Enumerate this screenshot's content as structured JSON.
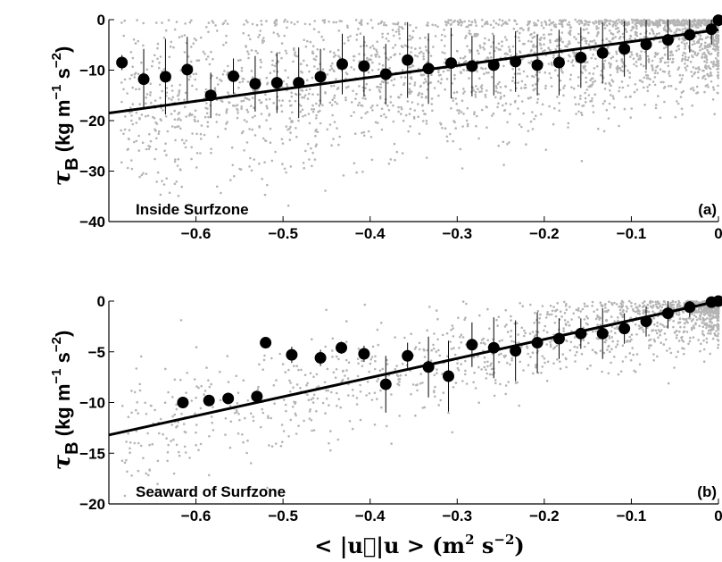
{
  "chart_data": [
    {
      "type": "scatter",
      "panel_tag": "(a)",
      "annotation": "Inside Surfzone",
      "ylabel": "τ_B (kg m^-1 s^-2)",
      "xlabel": "< |u⃗|u > (m^2 s^-2)",
      "xlim": [
        -0.7,
        0.0
      ],
      "ylim": [
        -40,
        0
      ],
      "xticks": [
        "-0.6",
        "-0.5",
        "-0.4",
        "-0.3",
        "-0.2",
        "-0.1",
        "0"
      ],
      "yticks": [
        "0",
        "-10",
        "-20",
        "-30",
        "-40"
      ],
      "fit_line": {
        "x": [
          -0.7,
          0.0
        ],
        "y": [
          -18.5,
          -2.0
        ]
      },
      "series": [
        {
          "style": "binned means with error bars",
          "x": [
            -0.685,
            -0.66,
            -0.635,
            -0.61,
            -0.583,
            -0.557,
            -0.532,
            -0.507,
            -0.482,
            -0.457,
            -0.432,
            -0.407,
            -0.382,
            -0.357,
            -0.333,
            -0.307,
            -0.283,
            -0.258,
            -0.233,
            -0.208,
            -0.183,
            -0.158,
            -0.133,
            -0.108,
            -0.083,
            -0.058,
            -0.033,
            -0.008,
            0.0
          ],
          "y": [
            -8.5,
            -11.8,
            -11.3,
            -9.9,
            -15.0,
            -11.2,
            -12.7,
            -12.5,
            -12.5,
            -11.3,
            -8.8,
            -9.2,
            -10.8,
            -8.0,
            -9.7,
            -8.6,
            -9.2,
            -9.0,
            -8.3,
            -9.0,
            -8.5,
            -7.5,
            -6.6,
            -5.8,
            -4.9,
            -4.0,
            -3.0,
            -1.9,
            -0.1
          ],
          "err": [
            1.5,
            6.0,
            7.5,
            6.5,
            4.5,
            3.5,
            5.5,
            6.0,
            7.0,
            5.5,
            6.0,
            6.0,
            6.0,
            7.5,
            7.0,
            7.0,
            6.0,
            6.0,
            6.0,
            6.0,
            6.5,
            6.0,
            6.0,
            5.5,
            5.0,
            4.0,
            3.5,
            3.0,
            1.0
          ]
        }
      ]
    },
    {
      "type": "scatter",
      "panel_tag": "(b)",
      "annotation": "Seaward of Surfzone",
      "ylabel": "τ_B (kg m^-1 s^-2)",
      "xlabel": "< |u⃗|u > (m^2 s^-2)",
      "xlim": [
        -0.7,
        0.0
      ],
      "ylim": [
        -20,
        0
      ],
      "xticks": [
        "-0.6",
        "-0.5",
        "-0.4",
        "-0.3",
        "-0.2",
        "-0.1",
        "0"
      ],
      "yticks": [
        "0",
        "-5",
        "-10",
        "-15",
        "-20"
      ],
      "fit_line": {
        "x": [
          -0.7,
          0.0
        ],
        "y": [
          -13.2,
          0.0
        ]
      },
      "series": [
        {
          "style": "binned means with error bars",
          "x": [
            -0.615,
            -0.585,
            -0.563,
            -0.53,
            -0.52,
            -0.49,
            -0.457,
            -0.433,
            -0.407,
            -0.382,
            -0.357,
            -0.333,
            -0.31,
            -0.283,
            -0.258,
            -0.233,
            -0.208,
            -0.183,
            -0.158,
            -0.133,
            -0.108,
            -0.083,
            -0.058,
            -0.033,
            -0.008,
            0.0
          ],
          "y": [
            -10.0,
            -9.8,
            -9.6,
            -9.4,
            -4.1,
            -5.3,
            -5.6,
            -4.6,
            -5.2,
            -8.2,
            -5.4,
            -6.5,
            -7.4,
            -4.3,
            -4.6,
            -4.9,
            -4.1,
            -3.7,
            -3.2,
            -3.2,
            -2.7,
            -2.0,
            -1.2,
            -0.6,
            -0.1,
            0.0
          ],
          "err": [
            0.0,
            0.0,
            0.0,
            0.0,
            0.0,
            0.8,
            0.8,
            0.6,
            0.8,
            2.8,
            1.3,
            3.0,
            3.5,
            2.2,
            3.0,
            3.0,
            3.0,
            2.0,
            1.5,
            2.5,
            1.5,
            1.5,
            1.5,
            1.0,
            0.5,
            0.3
          ]
        }
      ]
    }
  ]
}
